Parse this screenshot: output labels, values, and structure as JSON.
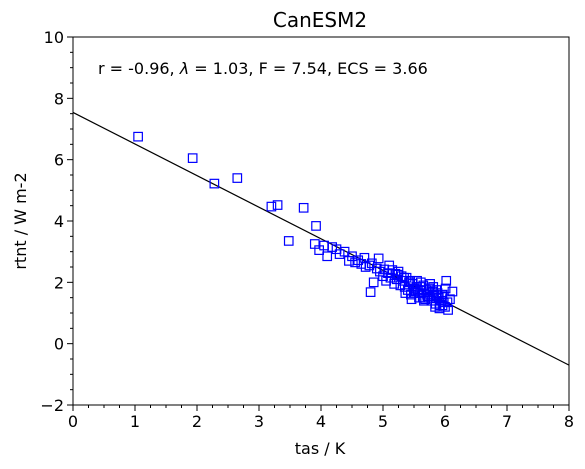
{
  "chart_data": {
    "type": "scatter",
    "title": "CanESM2",
    "xlabel": "tas / K",
    "ylabel": "rtnt / W m-2",
    "xlim": [
      0,
      8
    ],
    "ylim": [
      -2,
      10
    ],
    "x_ticks": [
      "0",
      "1",
      "2",
      "3",
      "4",
      "5",
      "6",
      "7",
      "8"
    ],
    "y_ticks": [
      "−2",
      "0",
      "2",
      "4",
      "6",
      "8",
      "10"
    ],
    "grid": false,
    "legend": "none",
    "annotation": {
      "prefix": "r = -0.96, ",
      "lambda_symbol": "λ",
      "suffix": " = 1.03, F = 7.54, ECS = 3.66"
    },
    "marker_color": "#0000ff",
    "line_color": "#000000",
    "fit_line": {
      "slope": -1.03,
      "intercept": 7.54
    },
    "points": {
      "x": [
        1.05,
        1.93,
        2.28,
        2.65,
        3.2,
        3.3,
        3.48,
        3.72,
        3.9,
        3.92,
        3.97,
        4.05,
        4.1,
        4.18,
        4.25,
        4.3,
        4.38,
        4.45,
        4.5,
        4.55,
        4.6,
        4.65,
        4.7,
        4.72,
        4.78,
        4.8,
        4.82,
        4.85,
        4.9,
        4.93,
        4.95,
        5.0,
        5.02,
        5.05,
        5.08,
        5.1,
        5.12,
        5.15,
        5.18,
        5.2,
        5.22,
        5.25,
        5.28,
        5.3,
        5.32,
        5.35,
        5.38,
        5.4,
        5.42,
        5.45,
        5.48,
        5.5,
        5.52,
        5.55,
        5.58,
        5.6,
        5.62,
        5.65,
        5.68,
        5.7,
        5.72,
        5.75,
        5.78,
        5.8,
        5.82,
        5.85,
        5.88,
        5.9,
        5.92,
        5.95,
        5.98,
        6.0,
        6.02,
        6.05,
        6.08,
        6.12,
        5.56,
        5.66,
        5.76,
        5.86,
        5.96,
        5.46,
        5.36,
        5.71,
        5.81,
        5.91,
        6.01,
        5.61,
        5.51,
        5.74,
        5.84,
        5.94,
        6.04,
        5.64,
        5.54,
        5.44,
        5.34,
        5.24,
        5.86,
        5.96
      ],
      "y": [
        6.75,
        6.05,
        5.22,
        5.4,
        4.47,
        4.52,
        3.35,
        4.43,
        3.25,
        3.84,
        3.05,
        3.2,
        2.85,
        3.15,
        3.08,
        2.92,
        3.0,
        2.7,
        2.85,
        2.65,
        2.72,
        2.6,
        2.8,
        2.5,
        2.55,
        1.68,
        2.62,
        2.0,
        2.45,
        2.78,
        2.35,
        2.2,
        2.42,
        2.05,
        2.3,
        2.55,
        2.15,
        2.4,
        1.95,
        2.28,
        2.1,
        2.35,
        1.9,
        2.2,
        2.05,
        1.85,
        2.15,
        1.75,
        2.0,
        1.6,
        1.95,
        1.8,
        1.7,
        2.05,
        1.5,
        1.85,
        1.65,
        1.9,
        1.45,
        1.75,
        1.55,
        1.8,
        1.4,
        1.7,
        1.6,
        1.3,
        1.65,
        1.5,
        1.25,
        1.55,
        1.35,
        1.2,
        2.05,
        1.1,
        1.45,
        1.7,
        1.75,
        1.4,
        1.95,
        1.55,
        1.25,
        1.45,
        1.65,
        1.6,
        1.85,
        1.15,
        1.8,
        2.0,
        1.65,
        1.5,
        1.2,
        1.4,
        1.35,
        1.5,
        1.85,
        2.05,
        2.15,
        2.25,
        1.75,
        1.6
      ]
    }
  }
}
